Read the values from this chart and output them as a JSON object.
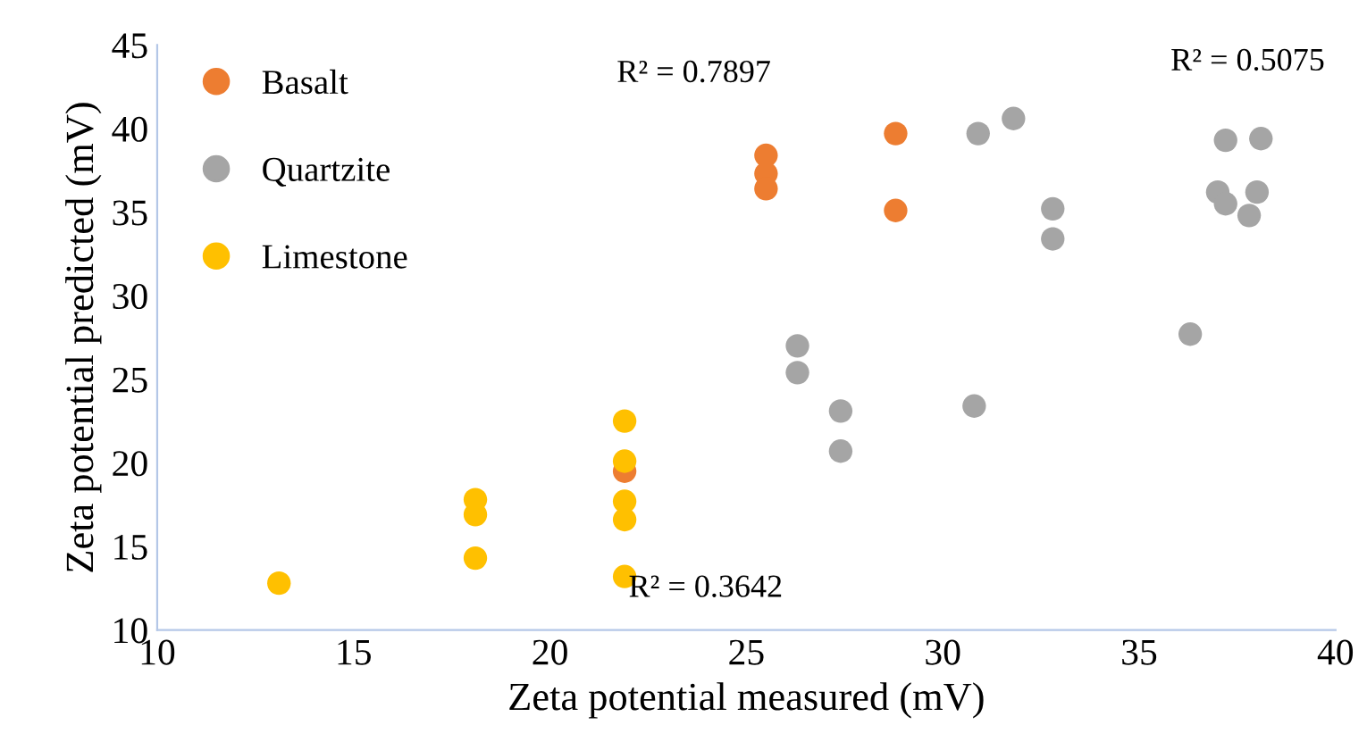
{
  "chart_data": {
    "type": "scatter",
    "xlabel": "Zeta potential measured (mV)",
    "ylabel": "Zeta potential predicted (mV)",
    "xlim": [
      10,
      40
    ],
    "xticks": [
      10,
      15,
      20,
      25,
      30,
      35,
      40
    ],
    "ylim": [
      10,
      45
    ],
    "yticks": [
      10,
      15,
      20,
      25,
      30,
      35,
      40,
      45
    ],
    "grid": false,
    "legend": "top left",
    "marker": "circle",
    "series": [
      {
        "name": "Basalt",
        "color": "#ed7d31",
        "x": [
          21.9,
          25.5,
          25.5,
          25.5,
          28.8,
          28.8
        ],
        "values": [
          19.5,
          38.4,
          37.3,
          36.4,
          39.7,
          35.1
        ]
      },
      {
        "name": "Quartzite",
        "color": "#a5a5a5",
        "x": [
          30.9,
          31.8,
          32.8,
          32.8,
          26.3,
          26.3,
          27.4,
          27.4,
          30.8,
          36.3,
          37.2,
          38.1,
          37.0,
          37.2,
          38.0,
          37.8
        ],
        "values": [
          39.7,
          40.6,
          35.2,
          33.4,
          27.0,
          25.4,
          23.1,
          20.7,
          23.4,
          27.7,
          39.3,
          39.4,
          36.2,
          35.5,
          36.2,
          34.8
        ]
      },
      {
        "name": "Limestone",
        "color": "#ffc000",
        "x": [
          13.1,
          18.1,
          18.1,
          18.1,
          21.9,
          21.9,
          21.9,
          21.9,
          21.9
        ],
        "values": [
          12.8,
          17.8,
          16.9,
          14.3,
          22.5,
          20.1,
          17.7,
          16.6,
          13.2
        ]
      }
    ],
    "annotations": [
      "R² = 0.7897",
      "R² = 0.5075",
      "R² = 0.3642"
    ]
  }
}
